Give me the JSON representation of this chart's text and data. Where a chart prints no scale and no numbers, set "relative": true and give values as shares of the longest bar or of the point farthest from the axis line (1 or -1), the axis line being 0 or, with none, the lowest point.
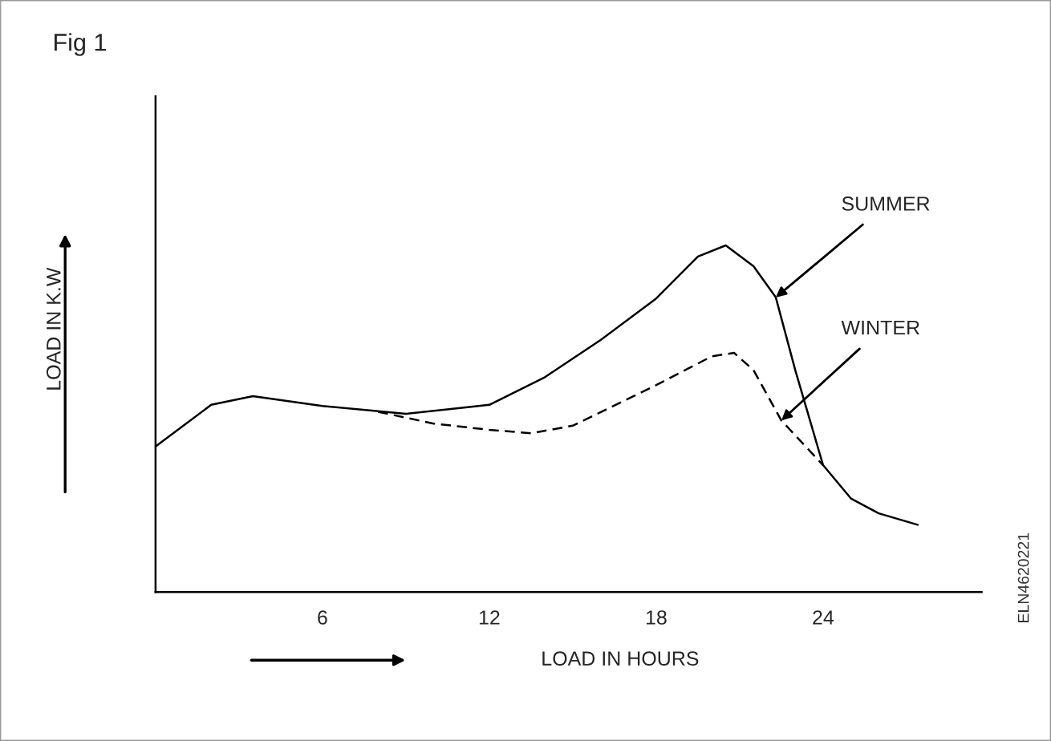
{
  "chart_data": {
    "type": "line",
    "title": "Fig 1",
    "xlabel": "LOAD IN HOURS",
    "ylabel": "LOAD IN K.W",
    "relative": true,
    "xlim": [
      0,
      29.7
    ],
    "xticks": [
      6,
      12,
      18,
      24
    ],
    "legend": false,
    "grid": false,
    "series": [
      {
        "name": "SUMMER",
        "color": "#000000",
        "line_style": "solid",
        "x": [
          0,
          2,
          3.5,
          6,
          9,
          12,
          14,
          16,
          18,
          19.5,
          20.5,
          21.5,
          22.3,
          23,
          24,
          25,
          26,
          27.4
        ],
        "values": [
          0.42,
          0.54,
          0.565,
          0.537,
          0.514,
          0.54,
          0.62,
          0.727,
          0.847,
          0.968,
          1,
          0.94,
          0.85,
          0.64,
          0.366,
          0.27,
          0.227,
          0.194
        ]
      },
      {
        "name": "WINTER",
        "color": "#000000",
        "line_style": "dashed",
        "x": [
          8,
          10,
          12,
          13.5,
          15,
          18,
          20,
          20.8,
          21.5,
          22.5,
          24
        ],
        "values": [
          0.52,
          0.486,
          0.468,
          0.458,
          0.48,
          0.597,
          0.68,
          0.69,
          0.64,
          0.495,
          0.366
        ]
      }
    ],
    "annotations": [
      "ELN4620221"
    ]
  }
}
